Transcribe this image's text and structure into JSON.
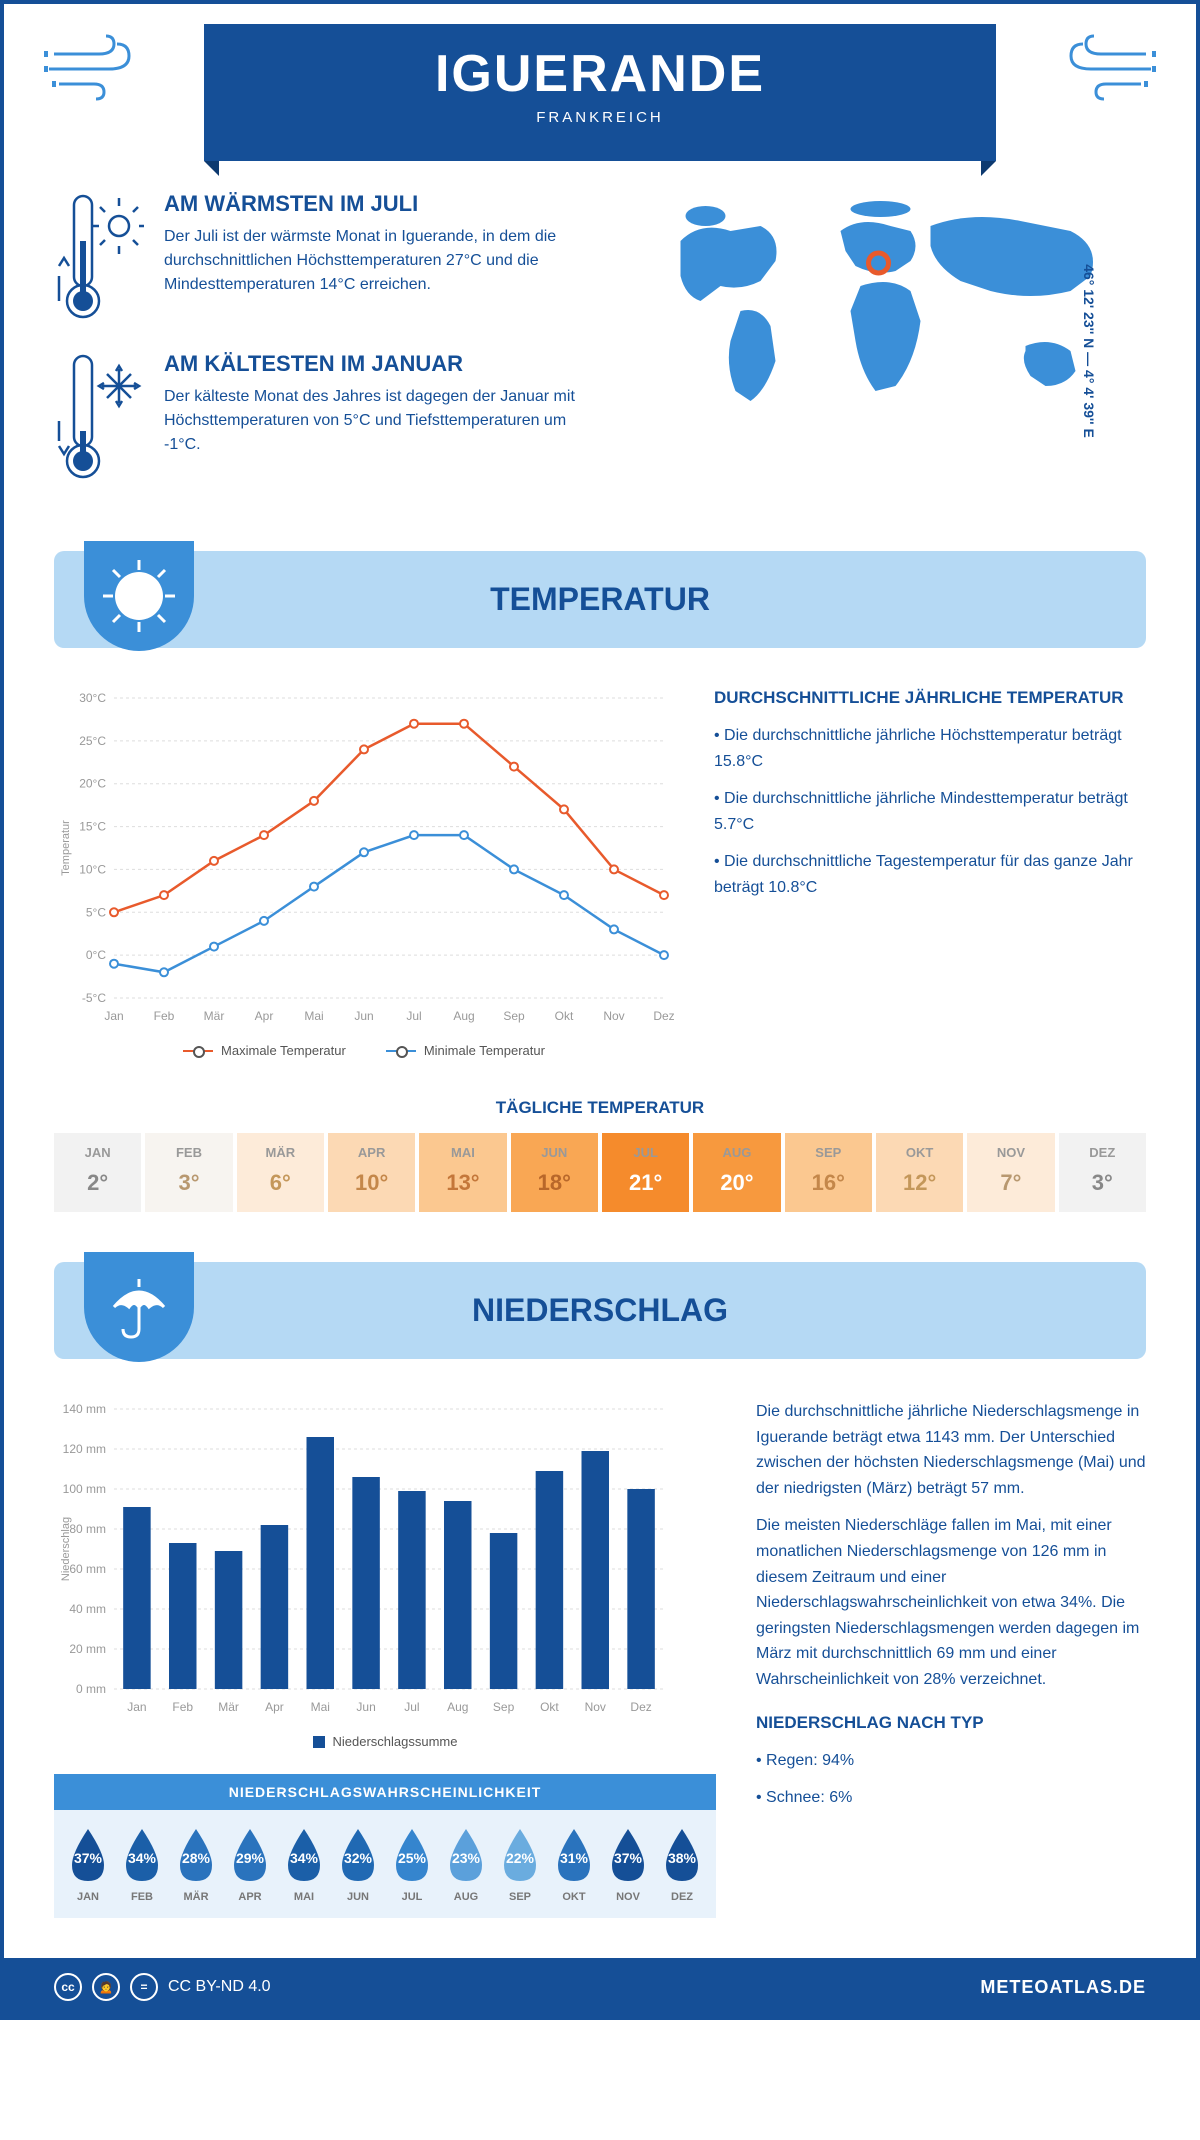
{
  "header": {
    "city": "IGUERANDE",
    "country": "FRANKREICH"
  },
  "coords": "46° 12' 23'' N — 4° 4' 39'' E",
  "colors": {
    "primary": "#154f97",
    "secondary": "#3b8fd8",
    "light": "#b5d9f4",
    "orange": "#e85a2c",
    "blue": "#3b8fd8"
  },
  "facts": {
    "warm": {
      "title": "AM WÄRMSTEN IM JULI",
      "text": "Der Juli ist der wärmste Monat in Iguerande, in dem die durchschnittlichen Höchsttemperaturen 27°C und die Mindesttemperaturen 14°C erreichen."
    },
    "cold": {
      "title": "AM KÄLTESTEN IM JANUAR",
      "text": "Der kälteste Monat des Jahres ist dagegen der Januar mit Höchsttemperaturen von 5°C und Tiefsttemperaturen um -1°C."
    }
  },
  "sections": {
    "temperature": "TEMPERATUR",
    "precipitation": "NIEDERSCHLAG"
  },
  "temp_chart": {
    "months": [
      "Jan",
      "Feb",
      "Mär",
      "Apr",
      "Mai",
      "Jun",
      "Jul",
      "Aug",
      "Sep",
      "Okt",
      "Nov",
      "Dez"
    ],
    "max": [
      5,
      7,
      11,
      14,
      18,
      24,
      27,
      27,
      22,
      17,
      10,
      7
    ],
    "min": [
      -1,
      -2,
      1,
      4,
      8,
      12,
      14,
      14,
      10,
      7,
      3,
      0
    ],
    "ylim": [
      -5,
      30
    ],
    "ytick_step": 5,
    "yunit": "°C",
    "ylabel": "Temperatur",
    "max_color": "#e85a2c",
    "min_color": "#3b8fd8",
    "legend": {
      "max": "Maximale Temperatur",
      "min": "Minimale Temperatur"
    }
  },
  "temp_info": {
    "title": "DURCHSCHNITTLICHE JÄHRLICHE TEMPERATUR",
    "lines": [
      "• Die durchschnittliche jährliche Höchsttemperatur beträgt 15.8°C",
      "• Die durchschnittliche jährliche Mindesttemperatur beträgt 5.7°C",
      "• Die durchschnittliche Tagestemperatur für das ganze Jahr beträgt 10.8°C"
    ]
  },
  "daily_temp": {
    "title": "TÄGLICHE TEMPERATUR",
    "months": [
      "JAN",
      "FEB",
      "MÄR",
      "APR",
      "MAI",
      "JUN",
      "JUL",
      "AUG",
      "SEP",
      "OKT",
      "NOV",
      "DEZ"
    ],
    "values": [
      "2°",
      "3°",
      "6°",
      "10°",
      "13°",
      "18°",
      "21°",
      "20°",
      "16°",
      "12°",
      "7°",
      "3°"
    ],
    "bg_colors": [
      "#f2f2f2",
      "#f7f4f0",
      "#fdebd9",
      "#fcd9b4",
      "#fbc890",
      "#f9a754",
      "#f58b2c",
      "#f7993e",
      "#fbc890",
      "#fcd9b4",
      "#fdebd9",
      "#f2f2f2"
    ],
    "text_colors": [
      "#888",
      "#b89870",
      "#c4975a",
      "#c4874a",
      "#c4773a",
      "#b8672a",
      "#fff",
      "#fff",
      "#c4874a",
      "#c4975a",
      "#b89870",
      "#888"
    ]
  },
  "precip_chart": {
    "months": [
      "Jan",
      "Feb",
      "Mär",
      "Apr",
      "Mai",
      "Jun",
      "Jul",
      "Aug",
      "Sep",
      "Okt",
      "Nov",
      "Dez"
    ],
    "values": [
      91,
      73,
      69,
      82,
      126,
      106,
      99,
      94,
      78,
      109,
      119,
      100
    ],
    "ylim": [
      0,
      140
    ],
    "ytick_step": 20,
    "yunit": " mm",
    "ylabel": "Niederschlag",
    "bar_color": "#154f97",
    "legend": "Niederschlagssumme"
  },
  "precip_info": {
    "p1": "Die durchschnittliche jährliche Niederschlagsmenge in Iguerande beträgt etwa 1143 mm. Der Unterschied zwischen der höchsten Niederschlagsmenge (Mai) und der niedrigsten (März) beträgt 57 mm.",
    "p2": "Die meisten Niederschläge fallen im Mai, mit einer monatlichen Niederschlagsmenge von 126 mm in diesem Zeitraum und einer Niederschlagswahrscheinlichkeit von etwa 34%. Die geringsten Niederschlagsmengen werden dagegen im März mit durchschnittlich 69 mm und einer Wahrscheinlichkeit von 28% verzeichnet.",
    "type_title": "NIEDERSCHLAG NACH TYP",
    "type_lines": [
      "• Regen: 94%",
      "• Schnee: 6%"
    ]
  },
  "precip_prob": {
    "title": "NIEDERSCHLAGSWAHRSCHEINLICHKEIT",
    "months": [
      "JAN",
      "FEB",
      "MÄR",
      "APR",
      "MAI",
      "JUN",
      "JUL",
      "AUG",
      "SEP",
      "OKT",
      "NOV",
      "DEZ"
    ],
    "values": [
      "37%",
      "34%",
      "28%",
      "29%",
      "34%",
      "32%",
      "25%",
      "23%",
      "22%",
      "31%",
      "37%",
      "38%"
    ],
    "colors": [
      "#154f97",
      "#1b5fa8",
      "#2a73bd",
      "#2a73bd",
      "#1b5fa8",
      "#2069b3",
      "#3585ce",
      "#5ba0db",
      "#6aacdf",
      "#2a73bd",
      "#154f97",
      "#154f97"
    ]
  },
  "footer": {
    "license": "CC BY-ND 4.0",
    "site": "METEOATLAS.DE"
  }
}
